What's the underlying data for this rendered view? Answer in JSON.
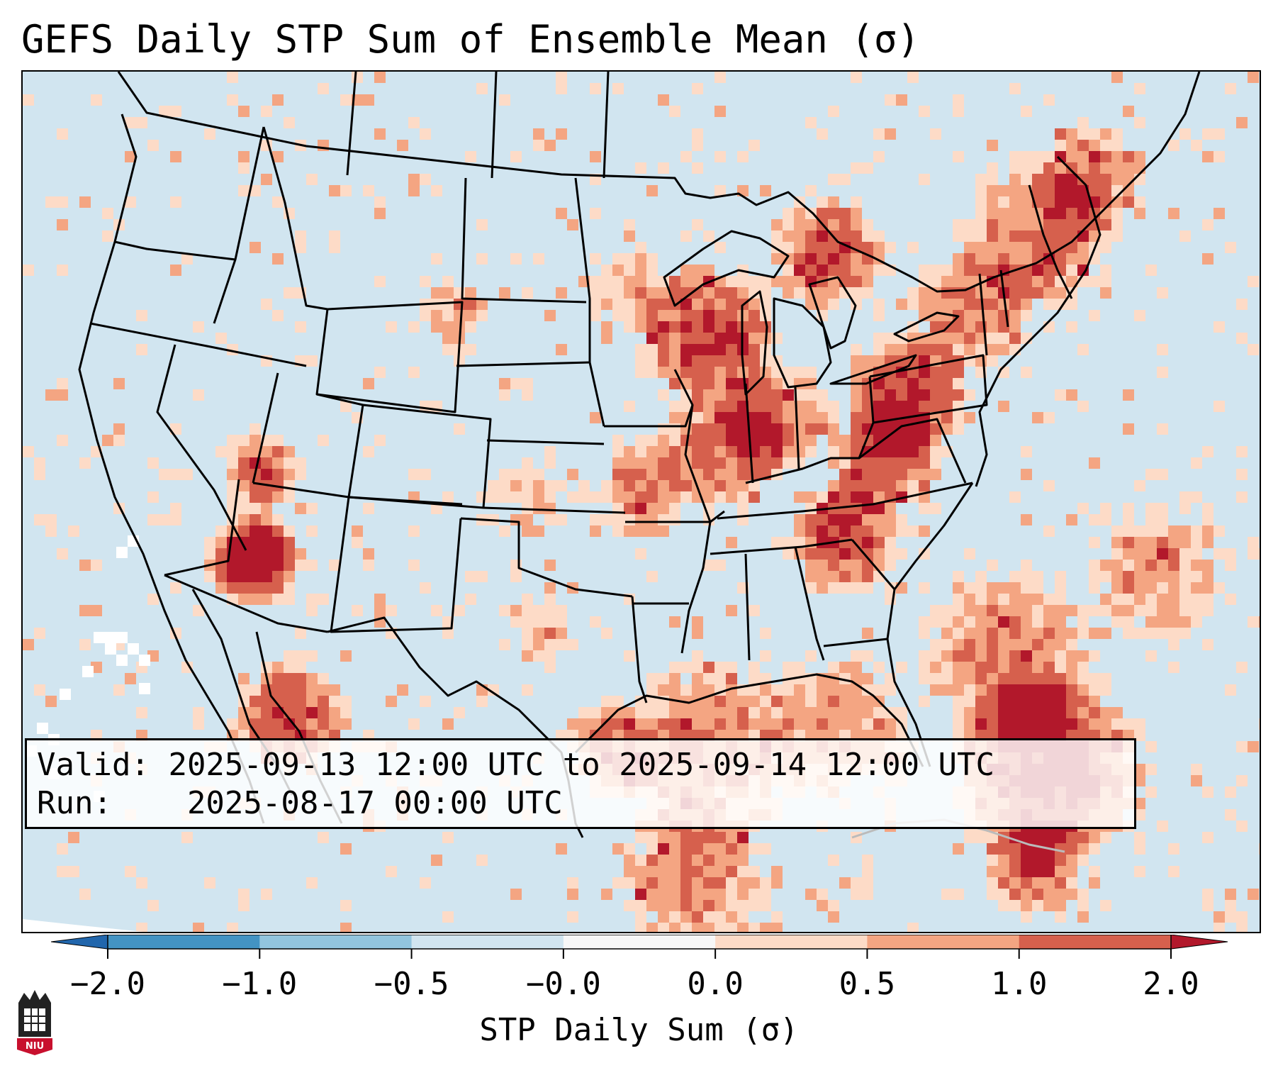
{
  "title": "GEFS Daily STP Sum of Ensemble Mean (σ)",
  "info": {
    "valid_label": "Valid:",
    "valid_value": "2025-09-13 12:00 UTC to 2025-09-14 12:00 UTC",
    "run_label": "Run:",
    "run_value": "2025-08-17 00:00 UTC"
  },
  "colorbar": {
    "label": "STP Daily Sum (σ)",
    "tick_labels": [
      "−2.0",
      "−1.0",
      "−0.5",
      "−0.0",
      "0.0",
      "0.5",
      "1.0",
      "2.0"
    ],
    "bins": [
      {
        "lo": -2.0,
        "hi": -1.0,
        "color": "#4393c3"
      },
      {
        "lo": -1.0,
        "hi": -0.5,
        "color": "#92c5de"
      },
      {
        "lo": -0.5,
        "hi": -0.0,
        "color": "#d1e5f0"
      },
      {
        "lo": -0.0,
        "hi": 0.0,
        "color": "#f7f7f7"
      },
      {
        "lo": 0.0,
        "hi": 0.5,
        "color": "#fddbc7"
      },
      {
        "lo": 0.5,
        "hi": 1.0,
        "color": "#f4a582"
      },
      {
        "lo": 1.0,
        "hi": 2.0,
        "color": "#d6604d"
      }
    ],
    "under_color": "#2166ac",
    "over_color": "#b2182b",
    "extend": "both"
  },
  "map": {
    "projection": "Lambert Conformal, CONUS",
    "background_color": "#d1e5f0",
    "field": "STP daily sum anomaly of GEFS ensemble mean (σ)",
    "max_region_notes": [
      "Southern California / Arizona border",
      "Michigan / Wisconsin",
      "Pennsylvania",
      "Caribbean near Cuba"
    ]
  },
  "logo_text": "NIU"
}
